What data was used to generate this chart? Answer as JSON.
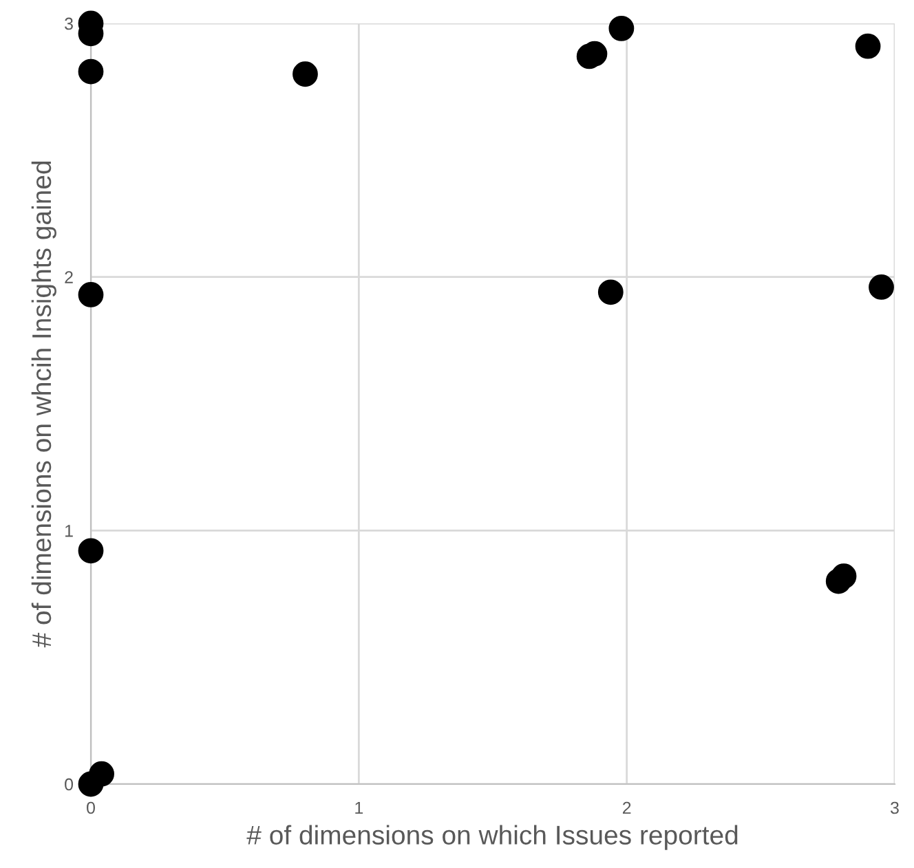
{
  "chart_data": {
    "type": "scatter",
    "xlabel": "# of dimensions on which Issues reported",
    "ylabel": "# of dimensions on whcih Insights gained",
    "series": [
      {
        "color": "#000000",
        "x": [
          0,
          0,
          0,
          0,
          0,
          0,
          0.04,
          0.8,
          1.86,
          1.88,
          1.98,
          1.94,
          2.9,
          2.95,
          2.79,
          2.81
        ],
        "values": [
          3.0,
          2.96,
          2.81,
          1.93,
          0.92,
          0,
          0.04,
          2.8,
          2.87,
          2.88,
          2.98,
          1.94,
          2.91,
          1.96,
          0.8,
          0.82
        ]
      }
    ],
    "xlim": [
      0,
      3
    ],
    "ylim": [
      0,
      3
    ],
    "xticks": [
      0,
      1,
      2,
      3
    ],
    "yticks": [
      0,
      1,
      2,
      3
    ],
    "grid": true,
    "marker": "circle"
  }
}
